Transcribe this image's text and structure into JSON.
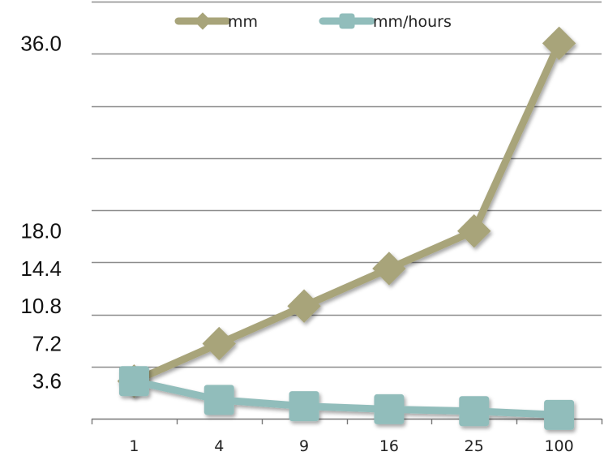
{
  "chart_data": {
    "type": "line",
    "categories": [
      "1",
      "4",
      "9",
      "16",
      "25",
      "100"
    ],
    "series": [
      {
        "name": "mm",
        "values": [
          3.6,
          7.2,
          10.8,
          14.4,
          18.0,
          36.0
        ],
        "color": "#a8a47a",
        "marker": "diamond"
      },
      {
        "name": "mm/hours",
        "values": [
          3.6,
          1.8,
          1.2,
          0.9,
          0.72,
          0.36
        ],
        "color": "#91bdbb",
        "marker": "square"
      }
    ],
    "y_tick_labels": [
      {
        "value": 36.0,
        "label": "36.0"
      },
      {
        "value": 18.0,
        "label": "18.0"
      },
      {
        "value": 14.4,
        "label": "14.4"
      },
      {
        "value": 10.8,
        "label": "10.8"
      },
      {
        "value": 7.2,
        "label": "7.2"
      },
      {
        "value": 3.6,
        "label": "3.6"
      }
    ],
    "gridlines": [
      0,
      5,
      10,
      15,
      20,
      25,
      30,
      35,
      40
    ],
    "ylim": [
      0,
      40
    ],
    "grid": true,
    "legend_position": "top",
    "title": "",
    "xlabel": "",
    "ylabel": ""
  }
}
